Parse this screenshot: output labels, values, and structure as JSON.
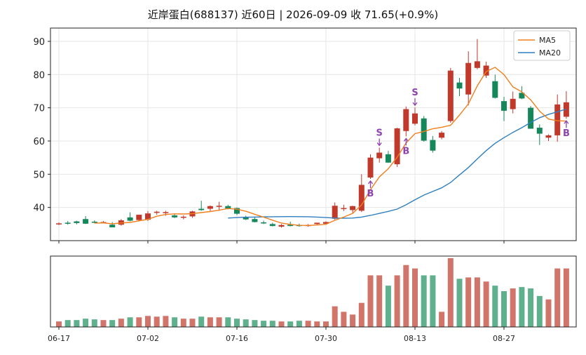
{
  "title": "近岸蛋白(688137) 近60日  |  2026-09-09 收 71.65(+0.9%)",
  "colors": {
    "up": "#c0392b",
    "down": "#16875a",
    "up_vol": "#d1756b",
    "down_vol": "#5fb08c",
    "ma5": "#f07f1c",
    "ma20": "#2f7fbf",
    "signal": "#8e44ad",
    "grid": "#e6e6e6"
  },
  "chart_data": {
    "type": "candlestick",
    "x_tick_labels": [
      "06-17",
      "07-02",
      "07-16",
      "07-30",
      "08-13",
      "08-27"
    ],
    "x_tick_indices": [
      0,
      10,
      20,
      30,
      40,
      50
    ],
    "price_ylim": [
      30,
      94
    ],
    "y_ticks": [
      40,
      50,
      60,
      70,
      80,
      90
    ],
    "legend": [
      {
        "name": "MA5"
      },
      {
        "name": "MA20"
      }
    ],
    "legend_position": "top-right",
    "grid": true,
    "ohlc": [
      [
        35.0,
        35.5,
        34.7,
        35.2
      ],
      [
        35.4,
        35.9,
        34.8,
        35.1
      ],
      [
        35.8,
        36.0,
        34.9,
        35.3
      ],
      [
        36.5,
        37.4,
        35.0,
        35.1
      ],
      [
        35.7,
        36.1,
        35.3,
        35.6
      ],
      [
        35.5,
        35.9,
        35.2,
        35.6
      ],
      [
        34.8,
        35.6,
        34.2,
        34.0
      ],
      [
        34.8,
        36.5,
        34.5,
        36.1
      ],
      [
        37.0,
        38.5,
        35.8,
        36.0
      ],
      [
        36.2,
        37.8,
        36.0,
        37.8
      ],
      [
        36.3,
        38.9,
        35.9,
        38.2
      ],
      [
        38.5,
        39.0,
        37.8,
        38.7
      ],
      [
        38.5,
        39.0,
        37.5,
        38.6
      ],
      [
        37.6,
        38.0,
        36.8,
        37.0
      ],
      [
        36.9,
        37.6,
        36.4,
        37.2
      ],
      [
        37.3,
        39.0,
        36.9,
        38.8
      ],
      [
        39.6,
        42.0,
        39.0,
        39.2
      ],
      [
        39.6,
        40.6,
        38.9,
        40.4
      ],
      [
        40.2,
        41.7,
        39.0,
        40.5
      ],
      [
        40.4,
        40.8,
        39.4,
        39.7
      ],
      [
        39.8,
        40.0,
        37.7,
        38.1
      ],
      [
        37.1,
        37.5,
        36.2,
        36.4
      ],
      [
        36.5,
        37.2,
        35.5,
        35.6
      ],
      [
        35.5,
        36.0,
        35.0,
        35.3
      ],
      [
        35.0,
        35.4,
        34.3,
        34.4
      ],
      [
        34.2,
        35.0,
        33.9,
        34.7
      ],
      [
        34.8,
        35.7,
        34.3,
        34.4
      ],
      [
        34.7,
        35.1,
        34.2,
        34.5
      ],
      [
        34.6,
        35.0,
        34.2,
        34.7
      ],
      [
        35.0,
        35.4,
        34.6,
        35.4
      ],
      [
        35.1,
        35.8,
        34.8,
        35.6
      ],
      [
        36.6,
        41.5,
        36.3,
        40.5
      ],
      [
        39.5,
        40.8,
        38.9,
        39.8
      ],
      [
        39.2,
        40.5,
        38.4,
        40.4
      ],
      [
        39.0,
        50.0,
        38.6,
        46.8
      ],
      [
        49.0,
        56.0,
        48.6,
        55.0
      ],
      [
        54.8,
        58.0,
        53.5,
        56.5
      ],
      [
        56.0,
        57.0,
        53.4,
        53.5
      ],
      [
        53.0,
        64.0,
        52.2,
        63.8
      ],
      [
        63.0,
        70.4,
        61.4,
        69.6
      ],
      [
        65.2,
        70.1,
        64.7,
        68.3
      ],
      [
        66.8,
        67.5,
        59.8,
        60.1
      ],
      [
        60.3,
        61.5,
        56.5,
        57.1
      ],
      [
        61.0,
        63.0,
        60.5,
        62.5
      ],
      [
        66.0,
        82.0,
        65.5,
        81.2
      ],
      [
        77.6,
        79.0,
        73.5,
        75.8
      ],
      [
        74.0,
        87.0,
        70.7,
        83.5
      ],
      [
        82.0,
        90.7,
        81.6,
        84.0
      ],
      [
        79.7,
        83.9,
        79.0,
        82.7
      ],
      [
        78.0,
        80.0,
        72.8,
        73.0
      ],
      [
        72.0,
        73.3,
        66.0,
        69.1
      ],
      [
        69.6,
        74.9,
        68.3,
        72.7
      ],
      [
        74.5,
        76.5,
        72.6,
        72.8
      ],
      [
        70.0,
        70.5,
        63.8,
        63.7
      ],
      [
        64.0,
        65.0,
        58.8,
        62.2
      ],
      [
        61.0,
        62.0,
        60.0,
        61.7
      ],
      [
        61.7,
        74.0,
        59.8,
        71.0
      ],
      [
        67.3,
        75.0,
        66.7,
        71.65
      ]
    ],
    "ma5": [
      null,
      null,
      null,
      null,
      35.25,
      35.34,
      35.07,
      35.32,
      35.5,
      35.96,
      36.42,
      37.34,
      37.88,
      38.06,
      38.02,
      38.12,
      38.44,
      38.77,
      39.16,
      39.67,
      39.47,
      38.85,
      37.95,
      37.08,
      36.16,
      35.28,
      34.9,
      34.6,
      34.58,
      34.7,
      34.92,
      36.12,
      37.1,
      38.22,
      40.7,
      45.34,
      49.2,
      51.64,
      55.12,
      59.4,
      62.22,
      62.86,
      63.7,
      64.14,
      64.72,
      67.8,
      71.18,
      76.6,
      80.9,
      82.2,
      80.0,
      76.3,
      74.8,
      72.4,
      69.0,
      66.6,
      66.1,
      66.0
    ],
    "ma20": [
      null,
      null,
      null,
      null,
      null,
      null,
      null,
      null,
      null,
      null,
      null,
      null,
      null,
      null,
      null,
      null,
      null,
      null,
      null,
      36.8,
      36.95,
      37.05,
      37.1,
      37.15,
      37.2,
      37.22,
      37.24,
      37.22,
      37.2,
      37.1,
      36.95,
      36.8,
      36.75,
      36.8,
      37.1,
      37.6,
      38.2,
      38.8,
      39.5,
      40.8,
      42.3,
      43.7,
      44.8,
      45.9,
      47.5,
      49.8,
      52.0,
      54.6,
      57.1,
      59.3,
      61.0,
      62.6,
      64.0,
      65.6,
      67.0,
      68.0,
      68.8,
      69.6
    ],
    "volume": [
      8,
      10,
      10,
      12,
      11,
      10,
      10,
      12,
      14,
      14,
      16,
      15,
      16,
      14,
      12,
      12,
      15,
      14,
      14,
      14,
      12,
      11,
      10,
      9,
      9,
      8,
      8,
      9,
      9,
      8,
      8,
      30,
      22,
      18,
      35,
      75,
      75,
      60,
      75,
      90,
      85,
      75,
      75,
      22,
      100,
      70,
      72,
      72,
      66,
      60,
      52,
      56,
      58,
      56,
      45,
      40,
      85,
      85
    ],
    "signals": [
      {
        "index": 35,
        "label": "B"
      },
      {
        "index": 36,
        "label": "S"
      },
      {
        "index": 39,
        "label": "B"
      },
      {
        "index": 40,
        "label": "S"
      },
      {
        "index": 57,
        "label": "B"
      }
    ]
  }
}
